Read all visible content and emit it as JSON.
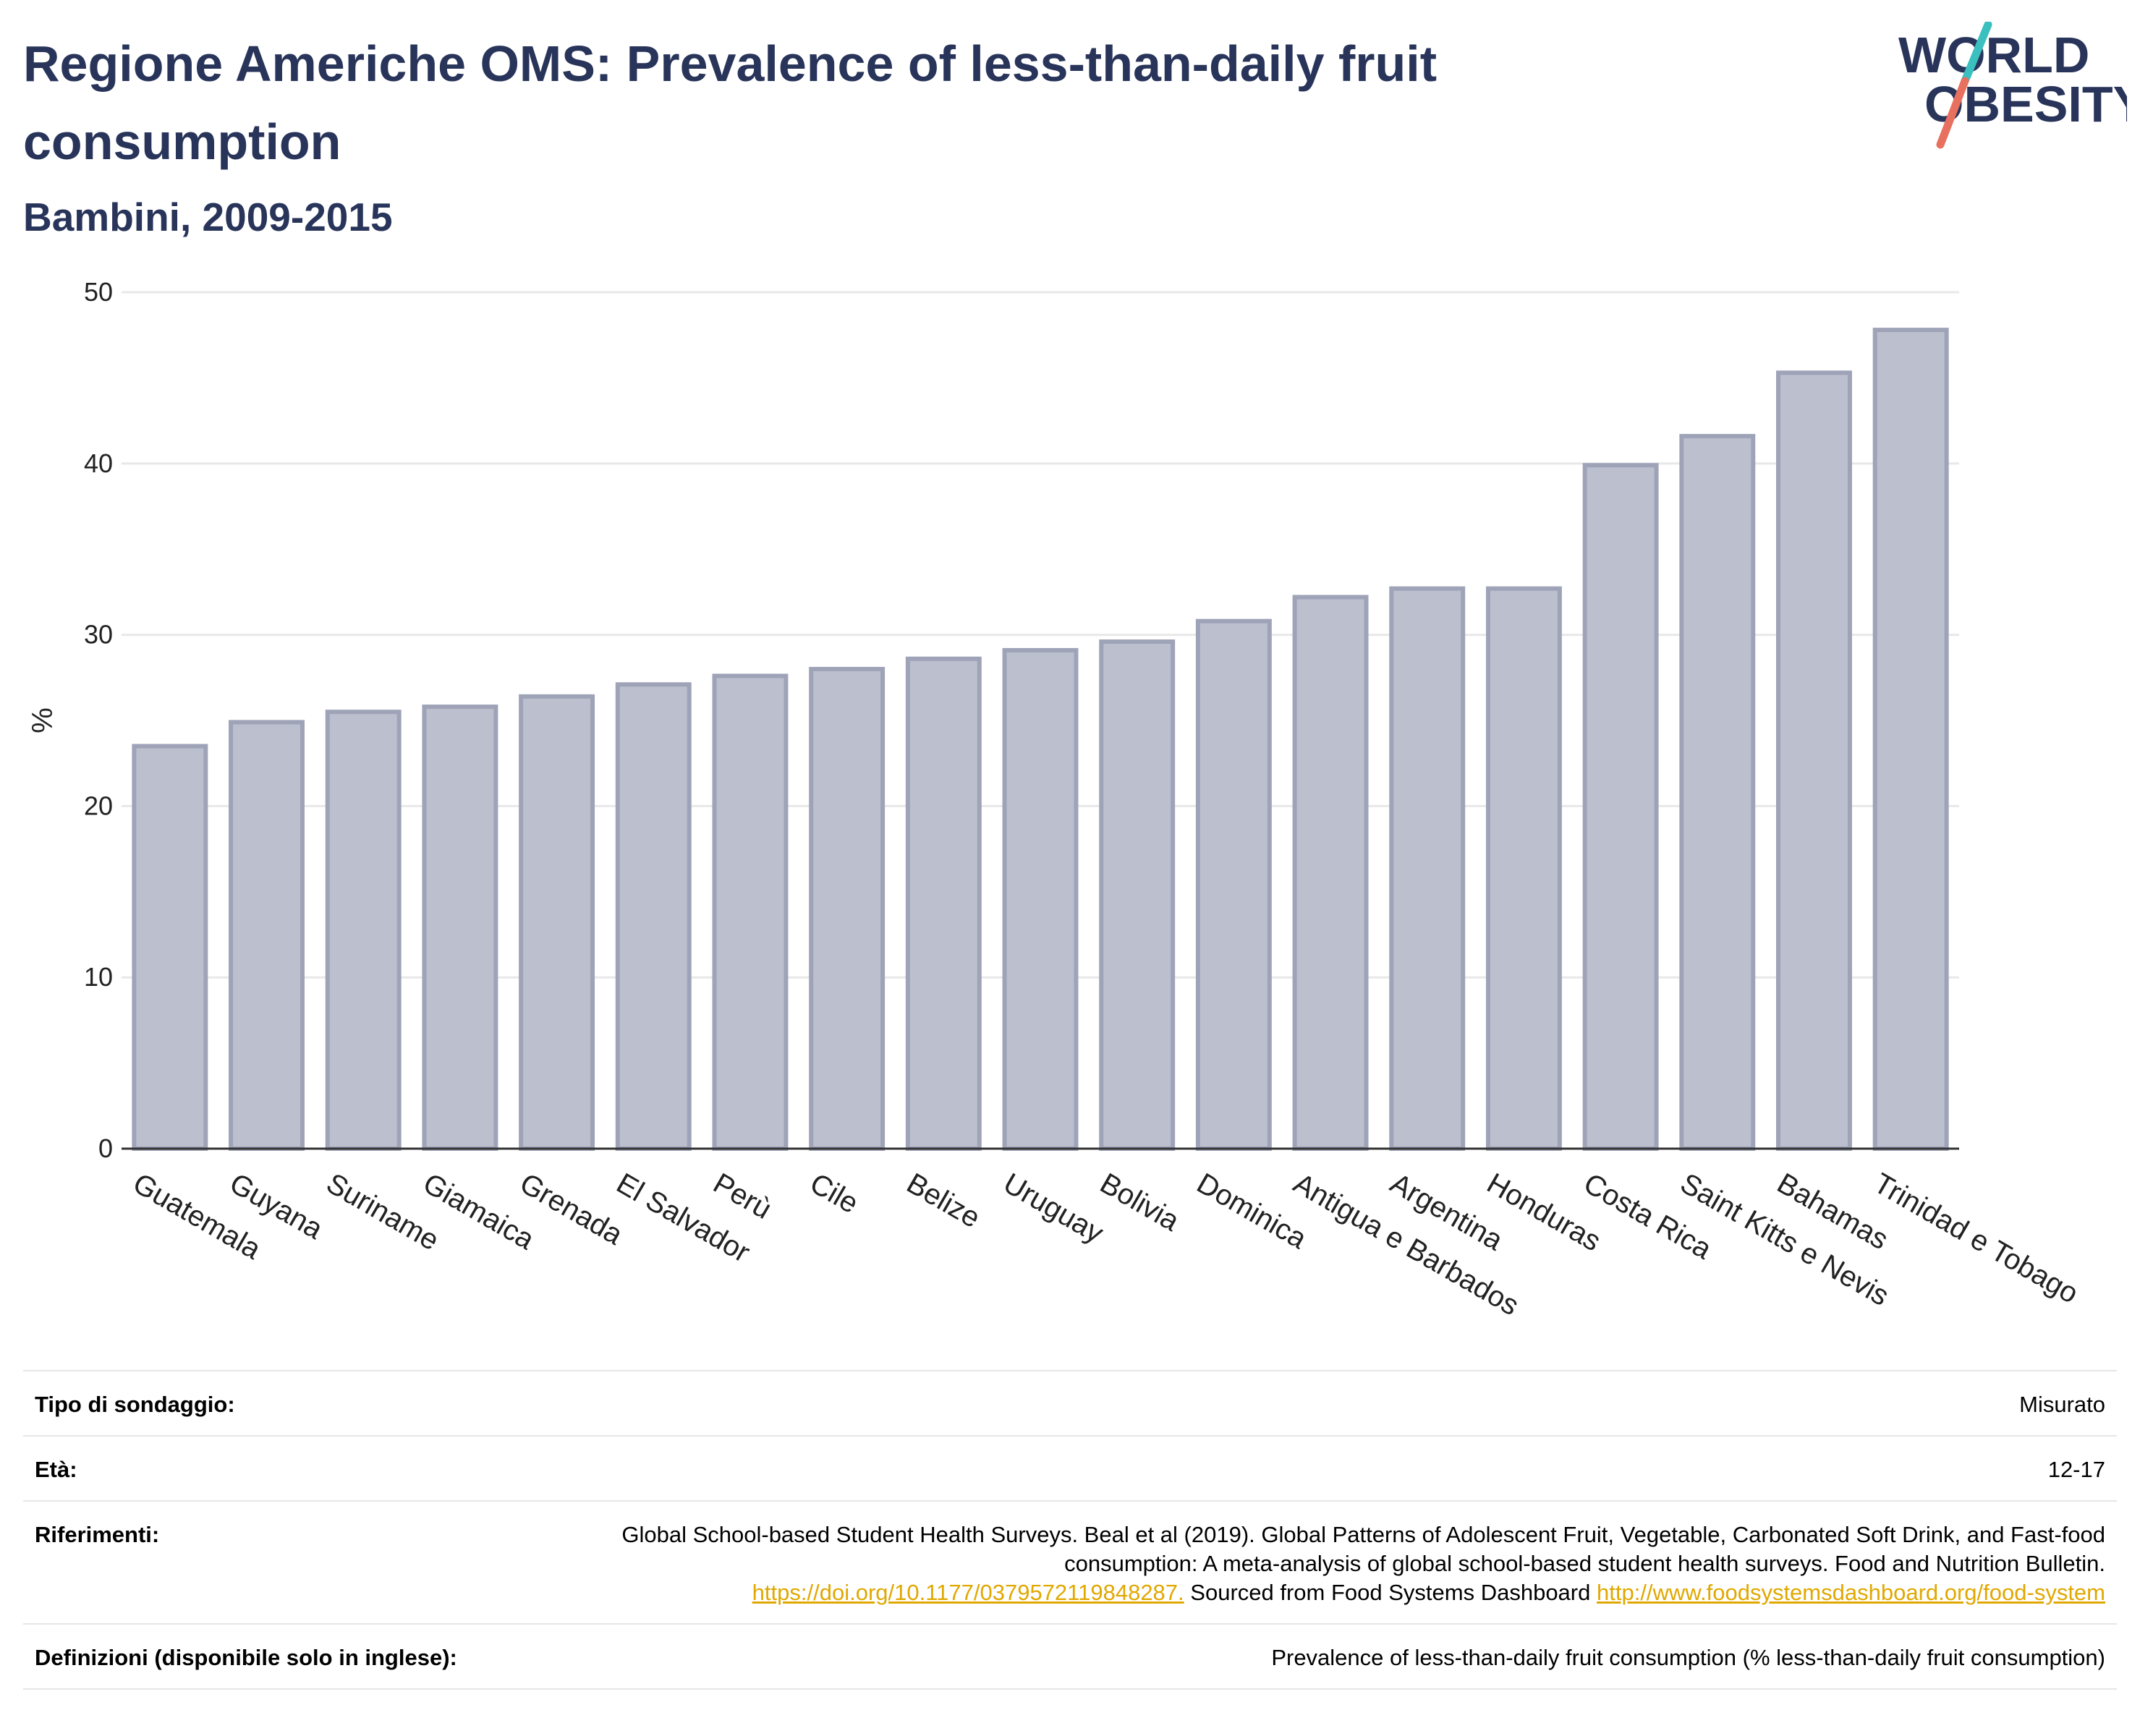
{
  "header": {
    "title": "Regione Americhe OMS: Prevalence of less-than-daily fruit consumption",
    "subtitle": "Bambini, 2009-2015"
  },
  "logo": {
    "line1": "WORLD",
    "line2": "OBESITY",
    "text_color": "#283459",
    "slash_colors": [
      "#3bbfbf",
      "#e8705f"
    ]
  },
  "colors": {
    "bar_fill": "#bcbfce",
    "bar_stroke": "#9ea3b8",
    "grid": "#e8e8e8",
    "axis": "#333333",
    "title": "#283459",
    "link": "#e0a800"
  },
  "chart_data": {
    "type": "bar",
    "title": "",
    "xlabel": "",
    "ylabel": "%",
    "ylim": [
      0,
      50
    ],
    "yticks": [
      0,
      10,
      20,
      30,
      40,
      50
    ],
    "grid": true,
    "categories": [
      "Guatemala",
      "Guyana",
      "Suriname",
      "Giamaica",
      "Grenada",
      "El Salvador",
      "Perù",
      "Cile",
      "Belize",
      "Uruguay",
      "Bolivia",
      "Dominica",
      "Antigua e Barbados",
      "Argentina",
      "Honduras",
      "Costa Rica",
      "Saint Kitts e Nevis",
      "Bahamas",
      "Trinidad e Tobago"
    ],
    "values": [
      23.5,
      24.9,
      25.5,
      25.8,
      26.4,
      27.1,
      27.6,
      28.0,
      28.6,
      29.1,
      29.6,
      30.8,
      32.2,
      32.7,
      32.7,
      39.9,
      41.6,
      45.3,
      47.8
    ]
  },
  "meta": {
    "survey_type_label": "Tipo di sondaggio:",
    "survey_type_value": "Misurato",
    "age_label": "Età:",
    "age_value": "12-17",
    "references_label": "Riferimenti:",
    "references_text": "Global School-based Student Health Surveys. Beal et al (2019). Global Patterns of Adolescent Fruit, Vegetable, Carbonated Soft Drink, and Fast-food consumption: A meta-analysis of global school-based student health surveys. Food and Nutrition Bulletin.",
    "references_link1": "https://doi.org/10.1177/0379572119848287.",
    "references_mid": "Sourced from Food Systems Dashboard",
    "references_link2": "http://www.foodsystemsdashboard.org/food-system",
    "definitions_label": "Definizioni (disponibile solo in inglese):",
    "definitions_value": "Prevalence of less-than-daily fruit consumption (% less-than-daily fruit consumption)"
  }
}
